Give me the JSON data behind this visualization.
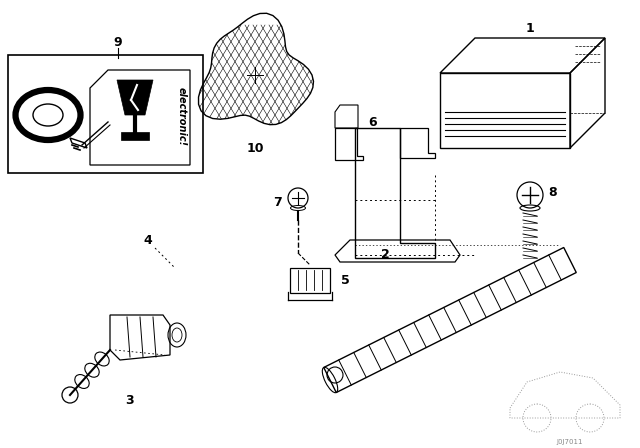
{
  "background_color": "#ffffff",
  "line_color": "#000000",
  "watermark": "J0J7011",
  "fig_w": 6.4,
  "fig_h": 4.48,
  "dpi": 100
}
